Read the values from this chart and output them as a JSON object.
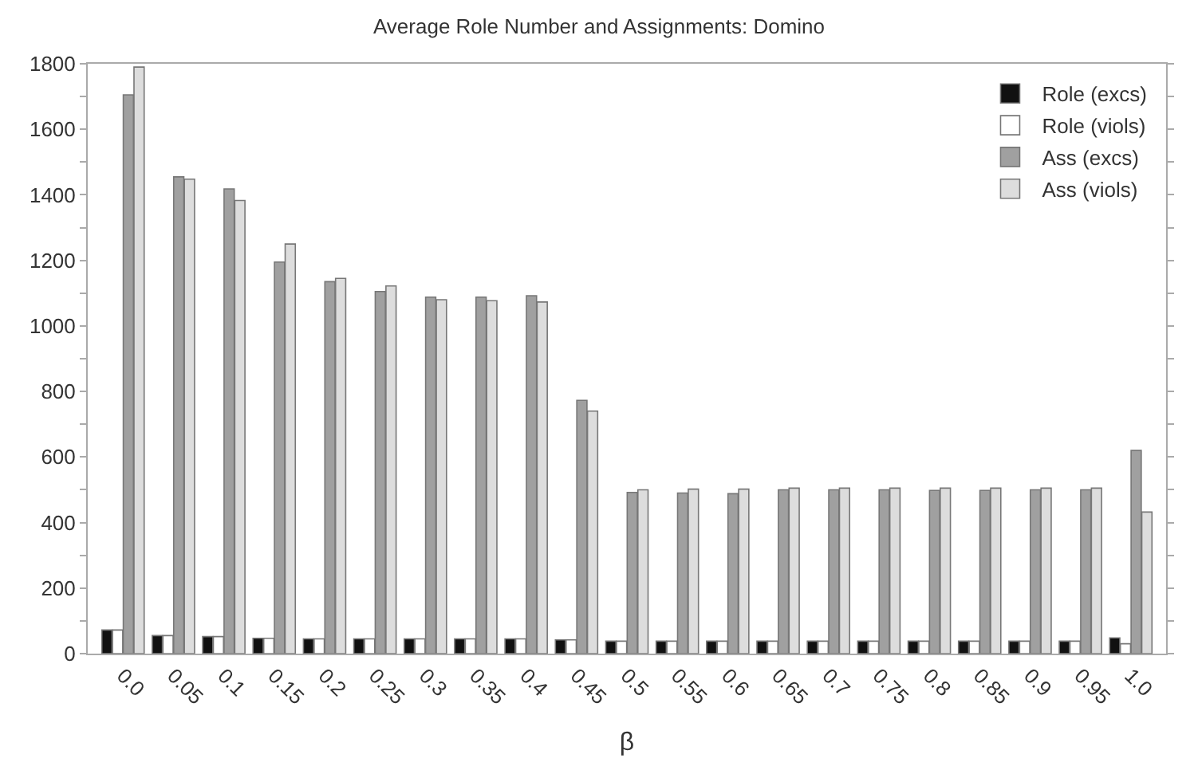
{
  "chart_data": {
    "type": "bar",
    "title": "Average Role Number and Assignments: Domino",
    "xlabel": "β",
    "categories": [
      "0.0",
      "0.05",
      "0.1",
      "0.15",
      "0.2",
      "0.25",
      "0.3",
      "0.35",
      "0.4",
      "0.45",
      "0.5",
      "0.55",
      "0.6",
      "0.65",
      "0.7",
      "0.75",
      "0.8",
      "0.85",
      "0.9",
      "0.95",
      "1.0"
    ],
    "series": [
      {
        "name": "Role (excs)",
        "color": "#111111",
        "values": [
          72,
          55,
          52,
          47,
          45,
          45,
          45,
          45,
          45,
          42,
          38,
          38,
          38,
          38,
          38,
          38,
          38,
          38,
          38,
          38,
          48
        ]
      },
      {
        "name": "Role (viols)",
        "color": "#ffffff",
        "values": [
          72,
          55,
          52,
          47,
          45,
          45,
          45,
          45,
          45,
          42,
          38,
          38,
          38,
          38,
          38,
          38,
          38,
          38,
          38,
          38,
          30
        ]
      },
      {
        "name": "Ass (excs)",
        "color": "#a0a0a0",
        "values": [
          1705,
          1455,
          1418,
          1195,
          1135,
          1105,
          1088,
          1088,
          1092,
          773,
          492,
          490,
          488,
          500,
          500,
          500,
          498,
          498,
          500,
          500,
          620
        ]
      },
      {
        "name": "Ass (viols)",
        "color": "#dddddd",
        "values": [
          1790,
          1448,
          1383,
          1250,
          1145,
          1122,
          1080,
          1077,
          1073,
          740,
          500,
          502,
          502,
          505,
          505,
          505,
          505,
          505,
          505,
          505,
          432
        ]
      }
    ],
    "ylim": [
      0,
      1800
    ],
    "yticks": [
      0,
      {
        "value": 100,
        "label": null
      },
      200,
      {
        "value": 300,
        "label": null
      },
      400,
      {
        "value": 500,
        "label": null
      },
      600,
      {
        "value": 700,
        "label": null
      },
      800,
      {
        "value": 900,
        "label": null
      },
      1000,
      {
        "value": 1100,
        "label": null
      },
      1200,
      {
        "value": 1300,
        "label": null
      },
      1400,
      {
        "value": 1500,
        "label": null
      },
      1600,
      {
        "value": 1700,
        "label": null
      },
      1800
    ],
    "legend": "top right"
  }
}
